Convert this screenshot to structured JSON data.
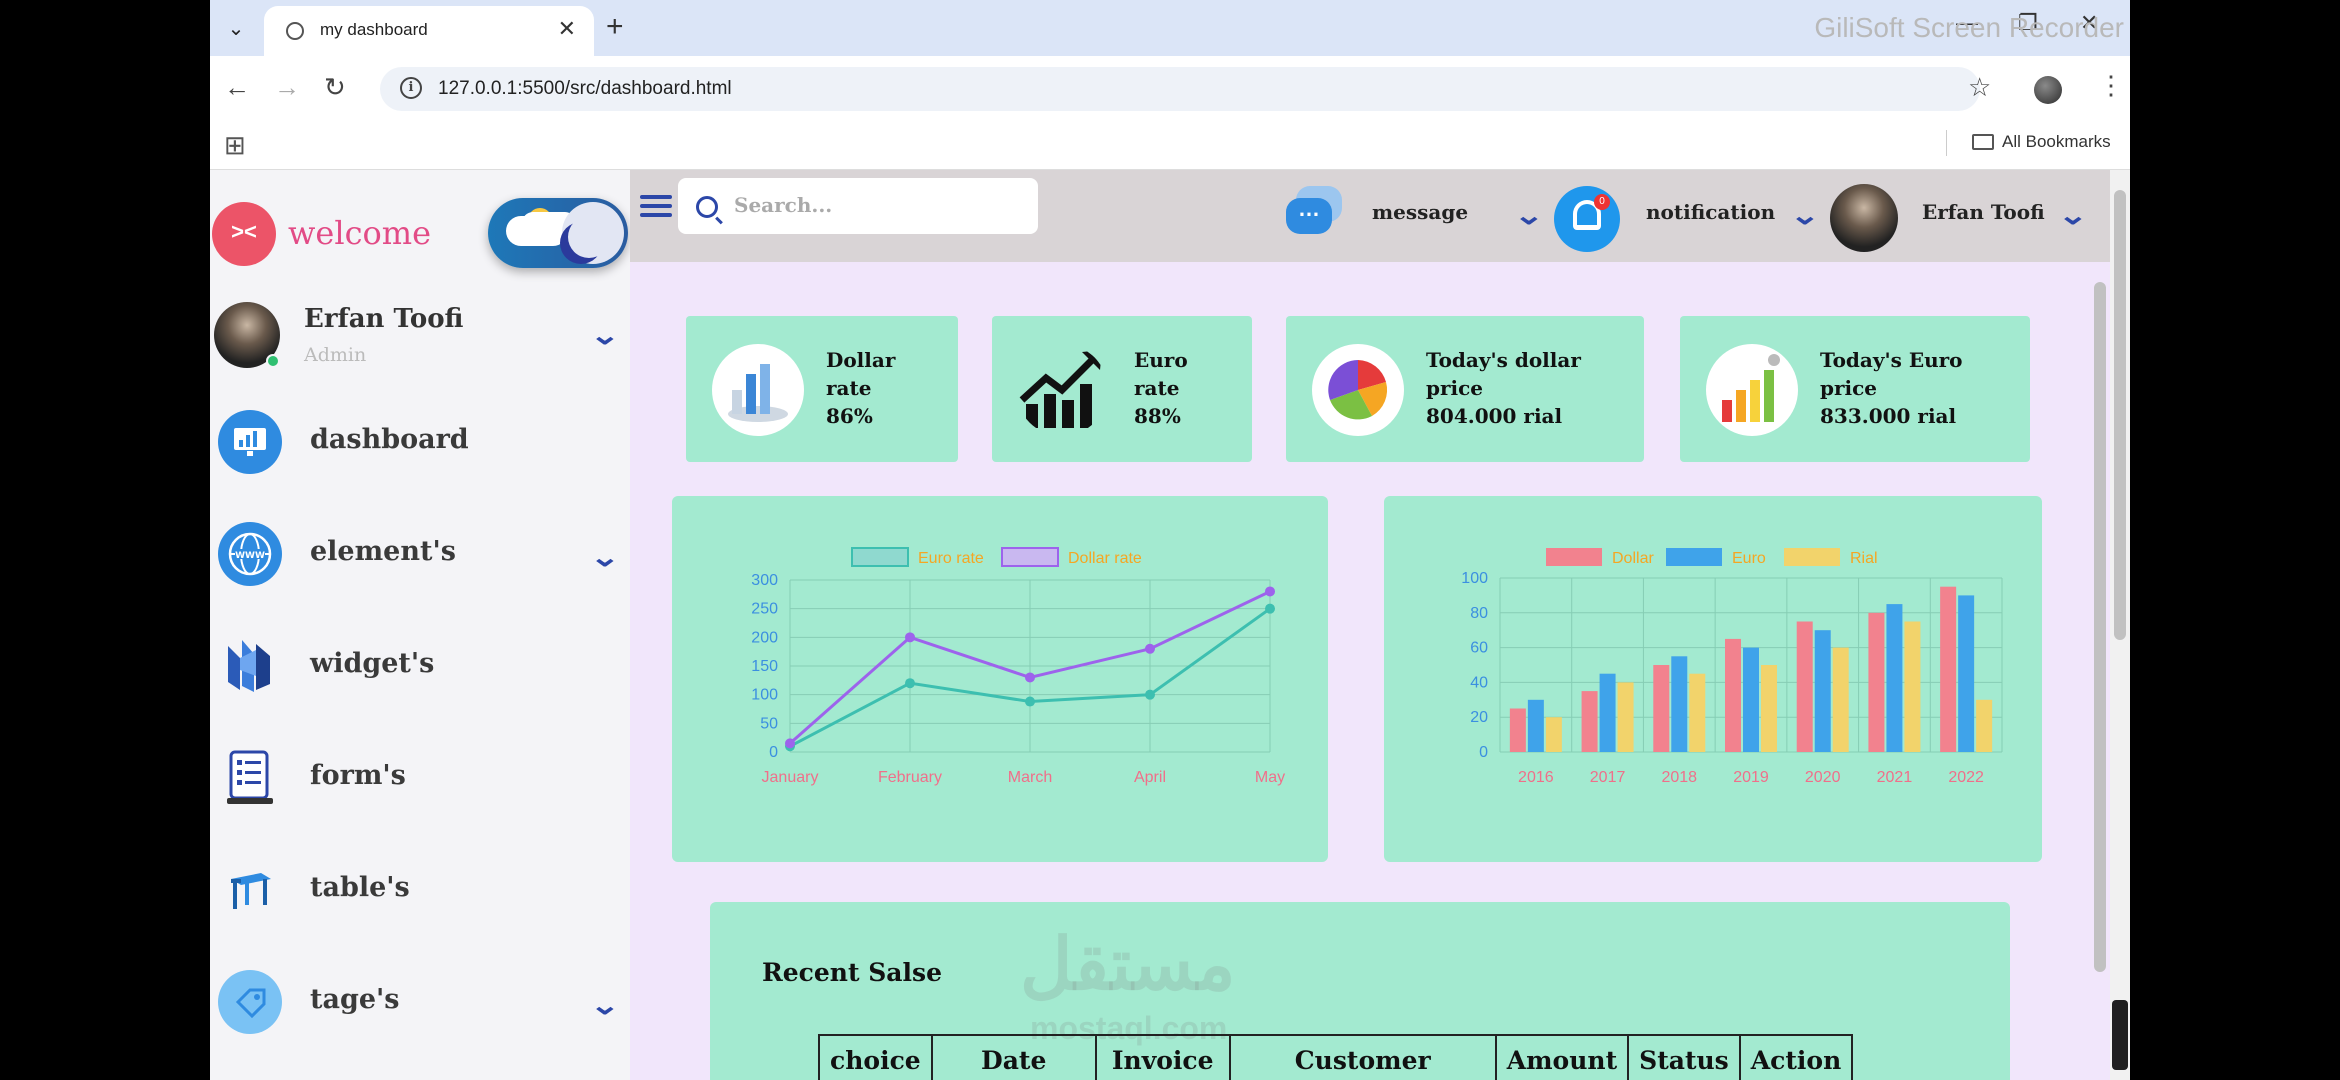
{
  "browser": {
    "tab_title": "my dashboard",
    "url": "127.0.0.1:5500/src/dashboard.html",
    "bookmarks_label": "All Bookmarks",
    "recorder_watermark": "GiliSoft Screen Recorder"
  },
  "sidebar": {
    "welcome": "welcome",
    "user_name": "Erfan Toofi",
    "user_role": "Admin",
    "items": [
      {
        "label": "dashboard",
        "icon": "monitor-chart-icon",
        "has_submenu": false
      },
      {
        "label": "element's",
        "icon": "globe-www-icon",
        "has_submenu": true
      },
      {
        "label": "widget's",
        "icon": "widget-icon",
        "has_submenu": false
      },
      {
        "label": "form's",
        "icon": "form-clipboard-icon",
        "has_submenu": false
      },
      {
        "label": "table's",
        "icon": "table-icon",
        "has_submenu": false
      },
      {
        "label": "tage's",
        "icon": "tag-icon",
        "has_submenu": true
      }
    ]
  },
  "topbar": {
    "search_placeholder": "Search...",
    "message_label": "message",
    "notification_label": "notification",
    "notification_count": "0",
    "user_name": "Erfan Toofi"
  },
  "stats": [
    {
      "line1": "Dollar",
      "line2": "rate",
      "value": "86%",
      "icon": "dollar-chart-icon"
    },
    {
      "line1": "Euro",
      "line2": "rate",
      "value": "88%",
      "icon": "rising-arrow-icon"
    },
    {
      "line1": "Today's dollar",
      "line2": "price",
      "value": "804.000 rial",
      "icon": "pie-chart-icon"
    },
    {
      "line1": "Today's Euro",
      "line2": "price",
      "value": "833.000 rial",
      "icon": "bar-growth-icon"
    }
  ],
  "chart_data": [
    {
      "type": "line",
      "x": [
        "January",
        "February",
        "March",
        "April",
        "May"
      ],
      "series": [
        {
          "name": "Euro rate",
          "values": [
            10,
            120,
            88,
            100,
            250
          ],
          "color": "#3dbfb0"
        },
        {
          "name": "Dollar rate",
          "values": [
            15,
            200,
            130,
            180,
            280
          ],
          "color": "#9d63ec"
        }
      ],
      "ylim": [
        0,
        300
      ],
      "yticks": [
        0,
        50,
        100,
        150,
        200,
        250,
        300
      ],
      "grid": true,
      "legend_position": "top"
    },
    {
      "type": "bar",
      "categories": [
        "2016",
        "2017",
        "2018",
        "2019",
        "2020",
        "2021",
        "2022"
      ],
      "series": [
        {
          "name": "Dollar",
          "values": [
            25,
            35,
            50,
            65,
            75,
            80,
            95
          ],
          "color": "#f2828e"
        },
        {
          "name": "Euro",
          "values": [
            30,
            45,
            55,
            60,
            70,
            85,
            90
          ],
          "color": "#3fa3ea"
        },
        {
          "name": "Rial",
          "values": [
            20,
            40,
            45,
            50,
            60,
            75,
            30
          ],
          "color": "#f2d36b"
        }
      ],
      "ylim": [
        0,
        100
      ],
      "yticks": [
        0,
        20,
        40,
        60,
        80,
        100
      ],
      "grid": true,
      "legend_position": "top"
    }
  ],
  "recent": {
    "title": "Recent Salse",
    "watermark": "مستقل",
    "watermark_sub": "mostaql.com",
    "columns": [
      "choice",
      "Date",
      "Invoice",
      "Customer",
      "Amount",
      "Status",
      "Action"
    ]
  }
}
